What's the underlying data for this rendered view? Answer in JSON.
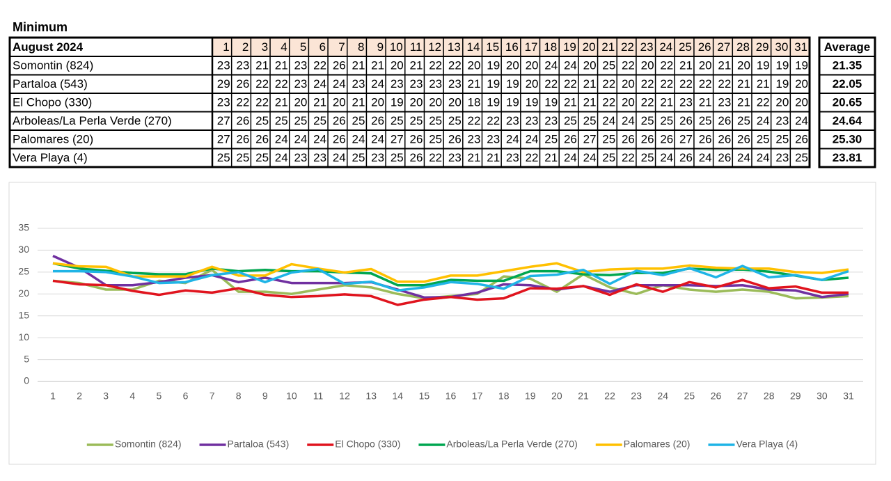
{
  "title": "Minimum",
  "table": {
    "header": {
      "label": "August 2024",
      "days": [
        1,
        2,
        3,
        4,
        5,
        6,
        7,
        8,
        9,
        10,
        11,
        12,
        13,
        14,
        15,
        16,
        17,
        18,
        19,
        20,
        21,
        22,
        23,
        24,
        25,
        26,
        27,
        28,
        29,
        30,
        31
      ],
      "average": "Average"
    },
    "rows": [
      {
        "name": "Somontin (824)",
        "values": [
          23,
          23,
          21,
          21,
          23,
          22,
          26,
          21,
          21,
          20,
          21,
          22,
          22,
          20,
          19,
          20,
          20,
          24,
          24,
          20,
          25,
          22,
          20,
          22,
          21,
          20,
          21,
          20,
          19,
          19,
          19
        ],
        "average": "21.35"
      },
      {
        "name": "Partaloa (543)",
        "values": [
          29,
          26,
          22,
          22,
          23,
          24,
          24,
          23,
          24,
          23,
          23,
          23,
          23,
          21,
          19,
          19,
          20,
          22,
          22,
          21,
          22,
          20,
          22,
          22,
          22,
          22,
          22,
          21,
          21,
          19,
          20
        ],
        "average": "22.05"
      },
      {
        "name": "El Chopo (330)",
        "values": [
          23,
          22,
          22,
          21,
          20,
          21,
          20,
          21,
          20,
          19,
          20,
          20,
          20,
          18,
          19,
          19,
          19,
          19,
          21,
          21,
          22,
          20,
          22,
          21,
          23,
          21,
          23,
          21,
          22,
          20,
          20
        ],
        "average": "20.65"
      },
      {
        "name": "Arboleas/La Perla Verde (270)",
        "values": [
          27,
          26,
          25,
          25,
          25,
          25,
          26,
          25,
          26,
          25,
          25,
          25,
          25,
          22,
          22,
          23,
          23,
          23,
          25,
          25,
          24,
          24,
          25,
          25,
          26,
          25,
          26,
          25,
          24,
          23,
          24
        ],
        "average": "24.64"
      },
      {
        "name": "Palomares (20)",
        "values": [
          27,
          26,
          26,
          24,
          24,
          24,
          26,
          24,
          24,
          27,
          26,
          25,
          26,
          23,
          23,
          24,
          24,
          25,
          26,
          27,
          25,
          26,
          26,
          26,
          27,
          26,
          26,
          26,
          25,
          25,
          26
        ],
        "average": "25.30"
      },
      {
        "name": "Vera Playa (4)",
        "values": [
          25,
          25,
          25,
          24,
          23,
          23,
          24,
          25,
          23,
          25,
          26,
          22,
          23,
          21,
          21,
          23,
          22,
          21,
          24,
          24,
          25,
          22,
          25,
          24,
          26,
          24,
          26,
          24,
          24,
          23,
          25
        ],
        "average": "23.81"
      }
    ]
  },
  "chart_data": {
    "type": "line",
    "categories": [
      1,
      2,
      3,
      4,
      5,
      6,
      7,
      8,
      9,
      10,
      11,
      12,
      13,
      14,
      15,
      16,
      17,
      18,
      19,
      20,
      21,
      22,
      23,
      24,
      25,
      26,
      27,
      28,
      29,
      30,
      31
    ],
    "ylim": [
      0,
      35
    ],
    "yticks": [
      0,
      5,
      10,
      15,
      20,
      25,
      30,
      35
    ],
    "grid": true,
    "legend": "bottom",
    "series": [
      {
        "name": "Somontin (824)",
        "color": "#9bbb59",
        "values": [
          23,
          22.5,
          21,
          21,
          23,
          22.5,
          25.5,
          20.5,
          20.5,
          20,
          21,
          22,
          21.5,
          20,
          19,
          19.5,
          20,
          24,
          23.5,
          20.5,
          24.5,
          21.5,
          20,
          22,
          21,
          20.5,
          21,
          20.5,
          19,
          19.2,
          19.5
        ]
      },
      {
        "name": "Partaloa (543)",
        "color": "#7030a0",
        "values": [
          28.7,
          26,
          22,
          22,
          22.7,
          23.7,
          24.3,
          22.7,
          23.7,
          22.5,
          22.5,
          22.5,
          22.7,
          21,
          19.2,
          19.3,
          20.3,
          22.2,
          22,
          21,
          21.8,
          20.5,
          22,
          22,
          22,
          21.8,
          22,
          21,
          20.8,
          19.3,
          20
        ]
      },
      {
        "name": "El Chopo (330)",
        "color": "#e0141e",
        "values": [
          23,
          22.2,
          22,
          20.7,
          19.8,
          20.8,
          20.3,
          21.3,
          19.8,
          19.3,
          19.5,
          19.9,
          19.5,
          17.5,
          18.7,
          19.3,
          18.7,
          19,
          21.3,
          21.2,
          21.8,
          19.8,
          22.2,
          20.5,
          22.7,
          21.5,
          23.2,
          21.3,
          21.7,
          20.3,
          20.3
        ]
      },
      {
        "name": "Arboleas/La Perla Verde (270)",
        "color": "#00a650",
        "values": [
          27,
          25.8,
          25.3,
          24.8,
          24.5,
          24.5,
          25.8,
          25.2,
          25.5,
          25.2,
          25.2,
          24.9,
          24.7,
          22,
          22,
          23.2,
          23,
          23,
          25.2,
          25.2,
          24.5,
          24.3,
          24.8,
          24.8,
          25.8,
          25.5,
          25.6,
          25.1,
          24.2,
          23.2,
          23.7
        ]
      },
      {
        "name": "Palomares (20)",
        "color": "#ffc000",
        "values": [
          27,
          26.3,
          26.2,
          24,
          24,
          24,
          26.2,
          24.2,
          24.2,
          26.8,
          25.8,
          24.9,
          25.7,
          22.8,
          22.8,
          24.2,
          24.2,
          25.2,
          26.2,
          27,
          25,
          25.6,
          25.8,
          25.8,
          26.5,
          26,
          25.8,
          25.8,
          25,
          24.8,
          25.6
        ]
      },
      {
        "name": "Vera Playa (4)",
        "color": "#1fb4e6",
        "values": [
          25.2,
          25.2,
          25,
          24,
          22.5,
          22.7,
          24.3,
          25,
          22.7,
          24.9,
          25.7,
          22.3,
          22.8,
          20.8,
          21.5,
          22.7,
          22.3,
          21.2,
          24.1,
          24.4,
          25.5,
          22.3,
          25.3,
          24.3,
          25.9,
          23.8,
          26.4,
          23.8,
          24.3,
          23.2,
          25.2
        ]
      }
    ]
  }
}
